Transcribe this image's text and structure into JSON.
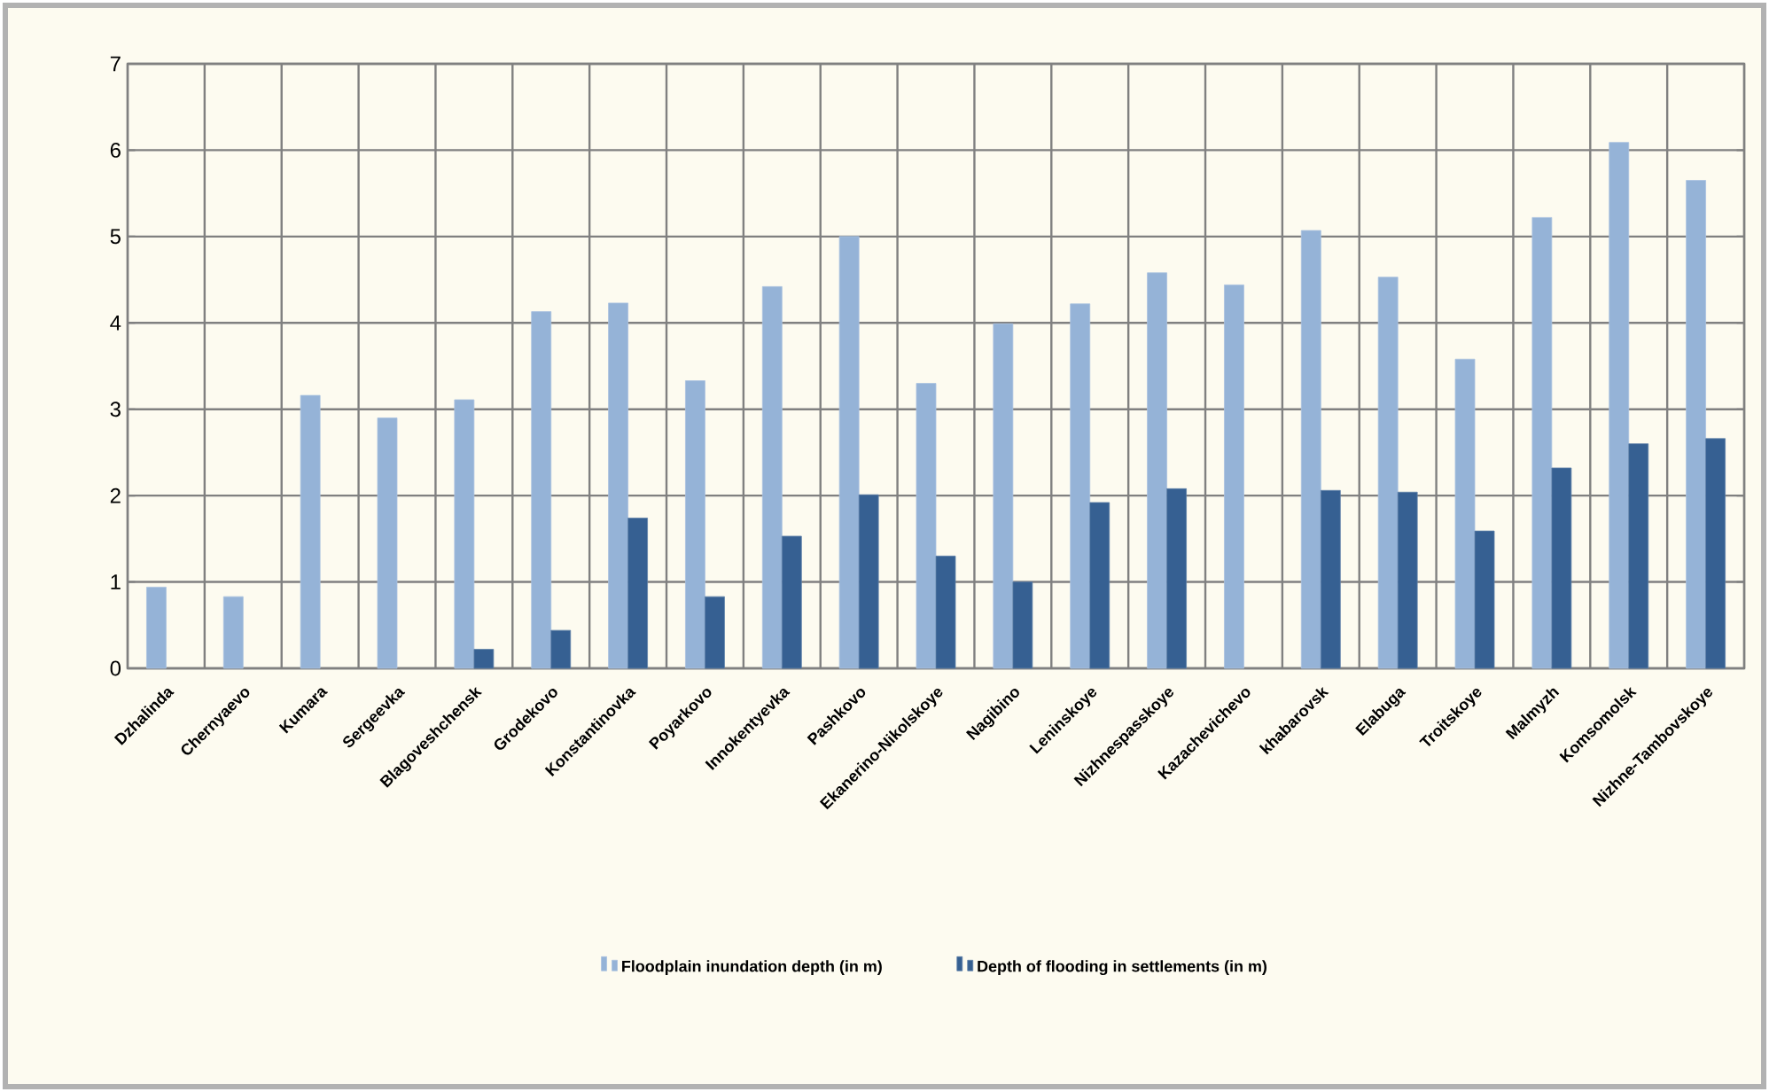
{
  "chart_data": {
    "type": "bar",
    "categories": [
      "Dzhalinda",
      "Chernyaevo",
      "Kumara",
      "Sergeevka",
      "Blagoveshchensk",
      "Grodekovo",
      "Konstantinovka",
      "Poyarkovo",
      "Innokentyevka",
      "Pashkovo",
      "Ekanerino-Nikolskoye",
      "Nagibino",
      "Leninskoye",
      "Nizhnespasskoye",
      "Kazachevichevo",
      "khabarovsk",
      "Elabuga",
      "Troitskoye",
      "Malmyzh",
      "Komsomolsk",
      "Nizhne-Tambovskoye"
    ],
    "series": [
      {
        "name": "Floodplain inundation depth (in m)",
        "color": "#95b3d7",
        "values": [
          0.94,
          0.83,
          3.16,
          2.9,
          3.11,
          4.13,
          4.23,
          3.33,
          4.42,
          5.0,
          3.3,
          3.99,
          4.22,
          4.58,
          4.44,
          5.07,
          4.53,
          3.58,
          5.22,
          6.09,
          5.65
        ]
      },
      {
        "name": "Depth of flooding in settlements (in m)",
        "color": "#366092",
        "values": [
          null,
          null,
          null,
          null,
          0.22,
          0.44,
          1.74,
          0.83,
          1.53,
          2.01,
          1.3,
          1.0,
          1.92,
          2.08,
          null,
          2.06,
          2.04,
          1.59,
          2.32,
          2.6,
          2.66
        ]
      }
    ],
    "ylim": [
      0,
      7
    ],
    "yticks": [
      0,
      1,
      2,
      3,
      4,
      5,
      6,
      7
    ],
    "grid": true,
    "legend": "bottom"
  }
}
